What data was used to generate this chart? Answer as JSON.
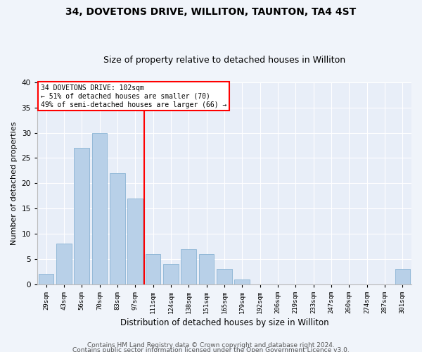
{
  "title1": "34, DOVETONS DRIVE, WILLITON, TAUNTON, TA4 4ST",
  "title2": "Size of property relative to detached houses in Williton",
  "xlabel": "Distribution of detached houses by size in Williton",
  "ylabel": "Number of detached properties",
  "categories": [
    "29sqm",
    "43sqm",
    "56sqm",
    "70sqm",
    "83sqm",
    "97sqm",
    "111sqm",
    "124sqm",
    "138sqm",
    "151sqm",
    "165sqm",
    "179sqm",
    "192sqm",
    "206sqm",
    "219sqm",
    "233sqm",
    "247sqm",
    "260sqm",
    "274sqm",
    "287sqm",
    "301sqm"
  ],
  "values": [
    2,
    8,
    27,
    30,
    22,
    17,
    6,
    4,
    7,
    6,
    3,
    1,
    0,
    0,
    0,
    0,
    0,
    0,
    0,
    0,
    3
  ],
  "bar_color": "#b8d0e8",
  "bar_edge_color": "#8ab4d4",
  "vline_x_index": 6,
  "vline_color": "red",
  "annotation_text": "34 DOVETONS DRIVE: 102sqm\n← 51% of detached houses are smaller (70)\n49% of semi-detached houses are larger (66) →",
  "annotation_box_color": "white",
  "annotation_box_edge": "red",
  "ylim": [
    0,
    40
  ],
  "yticks": [
    0,
    5,
    10,
    15,
    20,
    25,
    30,
    35,
    40
  ],
  "footer1": "Contains HM Land Registry data © Crown copyright and database right 2024.",
  "footer2": "Contains public sector information licensed under the Open Government Licence v3.0.",
  "background_color": "#f0f4fa",
  "plot_background": "#e8eef8",
  "title1_fontsize": 10,
  "title2_fontsize": 9,
  "xlabel_fontsize": 8.5,
  "ylabel_fontsize": 8,
  "footer_fontsize": 6.5
}
